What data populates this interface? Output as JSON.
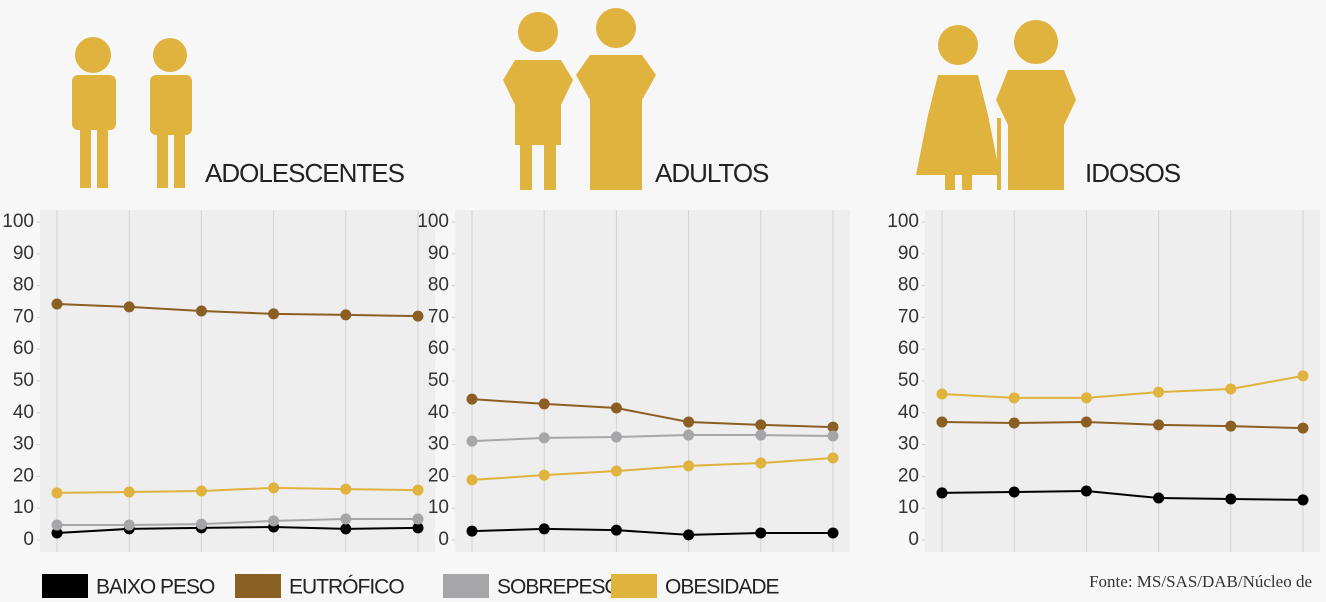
{
  "chart_data": [
    {
      "type": "line",
      "title": "ADOLESCENTES",
      "categories": [
        null,
        null,
        null,
        null,
        null,
        null
      ],
      "ylim": [
        0,
        100
      ],
      "yticks": [
        0,
        10,
        20,
        30,
        40,
        50,
        60,
        70,
        80,
        90,
        100
      ],
      "grid": true,
      "series": [
        {
          "name": "BAIXO PESO",
          "color": "#000000",
          "values": [
            2.2,
            3.5,
            3.8,
            4.1,
            3.5,
            3.8
          ]
        },
        {
          "name": "EUTRÓFICO",
          "color": "#8b5e24",
          "values": [
            74.2,
            73.3,
            72,
            71.1,
            70.8,
            70.4
          ]
        },
        {
          "name": "SOBREPESO",
          "color": "#a6a6a8",
          "values": [
            4.7,
            4.7,
            5,
            6,
            6.6,
            6.6
          ]
        },
        {
          "name": "OBESIDADE",
          "color": "#e0b23e",
          "values": [
            14.8,
            15.1,
            15.4,
            16.4,
            16,
            15.7
          ]
        }
      ]
    },
    {
      "type": "line",
      "title": "ADULTOS",
      "categories": [
        null,
        null,
        null,
        null,
        null,
        null
      ],
      "ylim": [
        0,
        100
      ],
      "yticks": [
        0,
        10,
        20,
        30,
        40,
        50,
        60,
        70,
        80,
        90,
        100
      ],
      "grid": true,
      "series": [
        {
          "color": "#000000",
          "values": [
            2.8,
            3.5,
            3.1,
            1.6,
            2.2,
            2.2
          ]
        },
        {
          "color": "#8b5e24",
          "values": [
            44.3,
            42.8,
            41.5,
            37.1,
            36.2,
            35.5
          ]
        },
        {
          "color": "#a6a6a8",
          "values": [
            31.1,
            32.1,
            32.4,
            33,
            33,
            32.7
          ]
        },
        {
          "color": "#e0b23e",
          "values": [
            18.9,
            20.4,
            21.7,
            23.3,
            24.2,
            25.8
          ]
        }
      ]
    },
    {
      "type": "line",
      "title": "IDOSOS",
      "categories": [
        null,
        null,
        null,
        null,
        null,
        null
      ],
      "ylim": [
        0,
        100
      ],
      "yticks": [
        0,
        10,
        20,
        30,
        40,
        50,
        60,
        70,
        80,
        90,
        100
      ],
      "grid": true,
      "series": [
        {
          "color": "#000000",
          "values": [
            14.8,
            15.1,
            15.4,
            13.2,
            12.9,
            12.6
          ]
        },
        {
          "color": "#8b5e24",
          "values": [
            37.1,
            36.8,
            37.1,
            36.2,
            35.8,
            35.2
          ]
        },
        {
          "color": "#e0b23e",
          "values": [
            45.9,
            44.7,
            44.7,
            46.5,
            47.5,
            51.6
          ]
        }
      ]
    }
  ],
  "source": "Fonte: MS/SAS/DAB/Núcleo de"
}
